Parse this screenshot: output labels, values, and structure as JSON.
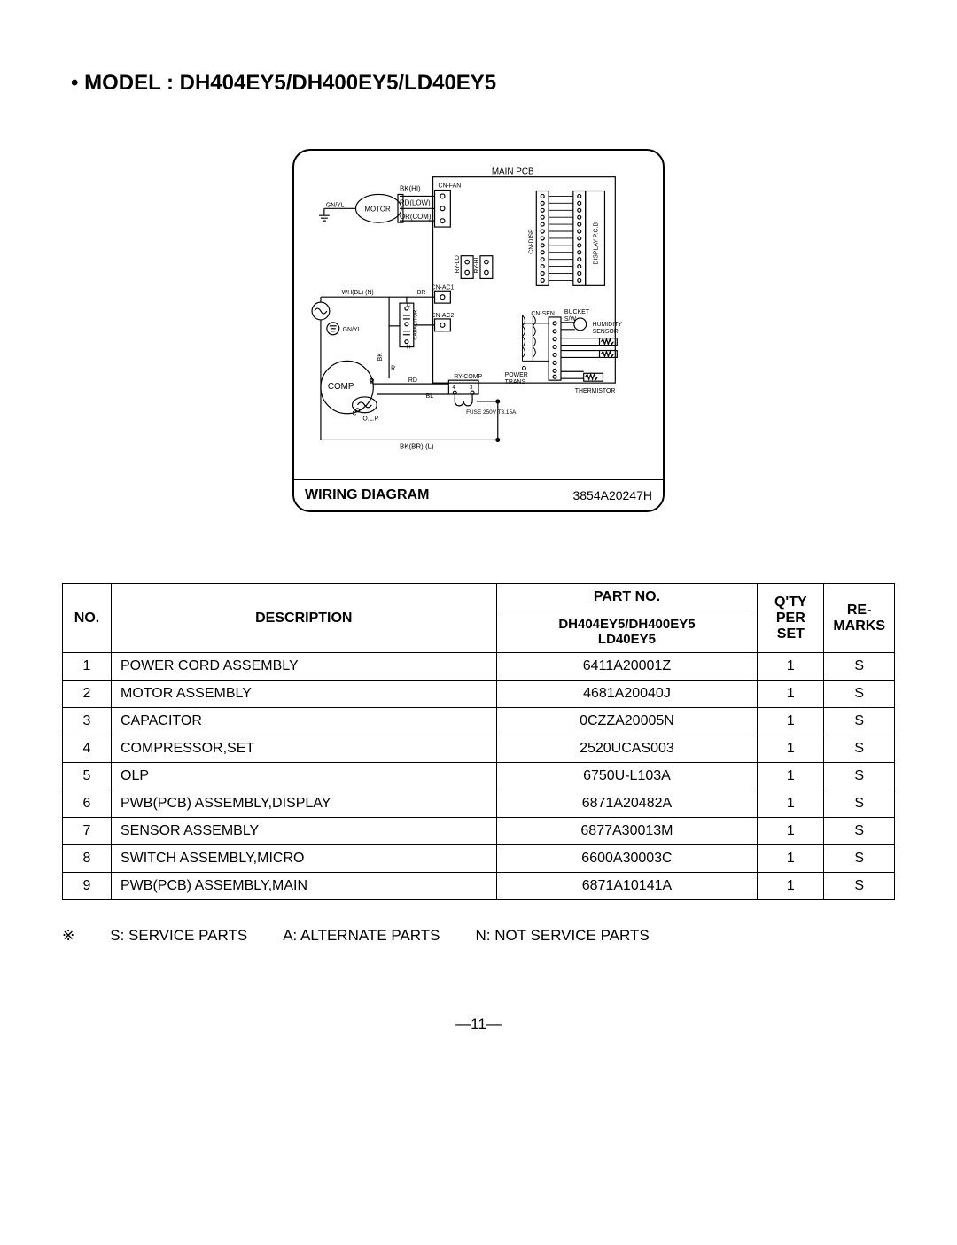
{
  "title": "• MODEL : DH404EY5/DH400EY5/LD40EY5",
  "wiring": {
    "label": "WIRING DIAGRAM",
    "code": "3854A20247H",
    "text": {
      "main_pcb": "MAIN PCB",
      "display_pcb": "DISPLAY P.C.B",
      "motor": "MOTOR",
      "bk_hi": "BK(HI)",
      "rd_low": "RD(LOW)",
      "or_com": "OR(COM)",
      "gnyl1": "GN/YL",
      "gnyl2": "GN/YL",
      "whbl_n": "WH(BL) (N)",
      "br": "BR",
      "cn_fan": "CN-FAN",
      "cn_disp": "CN-DISP",
      "ry_lo": "RY-LO",
      "ry_hi": "RY-HI",
      "cn_ac1": "CN-AC1",
      "cn_ac2": "CN-AC2",
      "cn_sen": "CN-SEN",
      "bucket_sw": "BUCKET\nS/W",
      "humidity_sensor": "HUMIDITY\nSENSOR",
      "thermistor": "THERMISTOR",
      "power_trans": "POWER\nTRANS",
      "fuse": "FUSE 250V T3.15A",
      "comp": "COMP.",
      "olp": "O.L.P",
      "ry_comp": "RY-COMP",
      "rd": "RD",
      "bl": "BL",
      "bk": "BK",
      "r": "R",
      "c1": "C",
      "c2": "C",
      "h": "H",
      "s": "S",
      "capacitor": "CAPACITOR",
      "bkbr_l": "BK(BR) (L)",
      "n4": "4",
      "n3": "3"
    }
  },
  "table": {
    "headers": {
      "no": "NO.",
      "description": "DESCRIPTION",
      "partno": "PART NO.",
      "partno_sub": "DH404EY5/DH400EY5\nLD40EY5",
      "qty": "Q'TY\nPER SET",
      "remarks": "RE-\nMARKS"
    },
    "rows": [
      {
        "no": "1",
        "desc": "POWER CORD ASSEMBLY",
        "part": "6411A20001Z",
        "qty": "1",
        "rem": "S"
      },
      {
        "no": "2",
        "desc": "MOTOR ASSEMBLY",
        "part": "4681A20040J",
        "qty": "1",
        "rem": "S"
      },
      {
        "no": "3",
        "desc": "CAPACITOR",
        "part": "0CZZA20005N",
        "qty": "1",
        "rem": "S"
      },
      {
        "no": "4",
        "desc": "COMPRESSOR,SET",
        "part": "2520UCAS003",
        "qty": "1",
        "rem": "S"
      },
      {
        "no": "5",
        "desc": "OLP",
        "part": "6750U-L103A",
        "qty": "1",
        "rem": "S"
      },
      {
        "no": "6",
        "desc": "PWB(PCB) ASSEMBLY,DISPLAY",
        "part": "6871A20482A",
        "qty": "1",
        "rem": "S"
      },
      {
        "no": "7",
        "desc": "SENSOR ASSEMBLY",
        "part": "6877A30013M",
        "qty": "1",
        "rem": "S"
      },
      {
        "no": "8",
        "desc": "SWITCH ASSEMBLY,MICRO",
        "part": "6600A30003C",
        "qty": "1",
        "rem": "S"
      },
      {
        "no": "9",
        "desc": "PWB(PCB) ASSEMBLY,MAIN",
        "part": "6871A10141A",
        "qty": "1",
        "rem": "S"
      }
    ]
  },
  "legend": {
    "symbol": "※",
    "s": "S: SERVICE PARTS",
    "a": "A: ALTERNATE PARTS",
    "n": "N: NOT SERVICE PARTS"
  },
  "page_num": "—11—"
}
